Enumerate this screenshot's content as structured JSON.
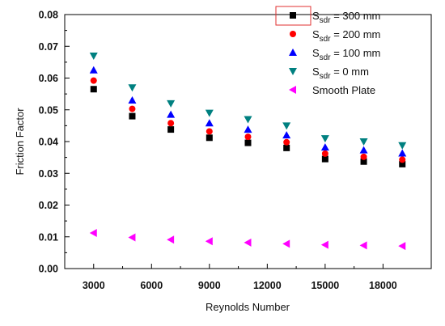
{
  "chart_data": {
    "type": "scatter",
    "xlabel": "Reynolds Number",
    "ylabel": "Friction Factor",
    "xlim": [
      1500,
      20500
    ],
    "ylim": [
      0,
      0.08
    ],
    "xticks": [
      3000,
      6000,
      9000,
      12000,
      15000,
      18000
    ],
    "xtick_labels": [
      "3000",
      "6000",
      "9000",
      "12000",
      "15000",
      "18000"
    ],
    "yticks": [
      0.0,
      0.01,
      0.02,
      0.03,
      0.04,
      0.05,
      0.06,
      0.07,
      0.08
    ],
    "ytick_labels": [
      "0.00",
      "0.01",
      "0.02",
      "0.03",
      "0.04",
      "0.05",
      "0.06",
      "0.07",
      "0.08"
    ],
    "grid": false,
    "legend_position": "top-right",
    "x": [
      3000,
      5000,
      7000,
      9000,
      11000,
      13000,
      15000,
      17000,
      19000
    ],
    "series": [
      {
        "legend_main": "S",
        "legend_sub": "sdr",
        "legend_tail": " = 300 mm",
        "marker": "square",
        "color": "#000000",
        "values": [
          0.0565,
          0.048,
          0.0438,
          0.0412,
          0.0396,
          0.038,
          0.0345,
          0.0337,
          0.0329
        ]
      },
      {
        "legend_main": "S",
        "legend_sub": "sdr",
        "legend_tail": " = 200 mm",
        "marker": "circle",
        "color": "#ff0000",
        "values": [
          0.0592,
          0.0503,
          0.0458,
          0.0432,
          0.0415,
          0.0398,
          0.0362,
          0.0352,
          0.0343
        ]
      },
      {
        "legend_main": "S",
        "legend_sub": "sdr",
        "legend_tail": " = 100 mm",
        "marker": "triangle-up",
        "color": "#0000ff",
        "values": [
          0.0625,
          0.053,
          0.0485,
          0.0458,
          0.0438,
          0.042,
          0.0382,
          0.0373,
          0.0363
        ]
      },
      {
        "legend_main": "S",
        "legend_sub": "sdr",
        "legend_tail": " =  0 mm",
        "marker": "triangle-down",
        "color": "#008080",
        "values": [
          0.067,
          0.057,
          0.052,
          0.049,
          0.047,
          0.045,
          0.041,
          0.04,
          0.0388
        ]
      },
      {
        "legend_main": "Smooth Plate",
        "legend_sub": "",
        "legend_tail": "",
        "marker": "triangle-left",
        "color": "#ff00ff",
        "values": [
          0.0112,
          0.0098,
          0.0091,
          0.0086,
          0.0082,
          0.0078,
          0.0075,
          0.0073,
          0.0071
        ]
      }
    ],
    "legend_highlight_color": "#e03030"
  }
}
